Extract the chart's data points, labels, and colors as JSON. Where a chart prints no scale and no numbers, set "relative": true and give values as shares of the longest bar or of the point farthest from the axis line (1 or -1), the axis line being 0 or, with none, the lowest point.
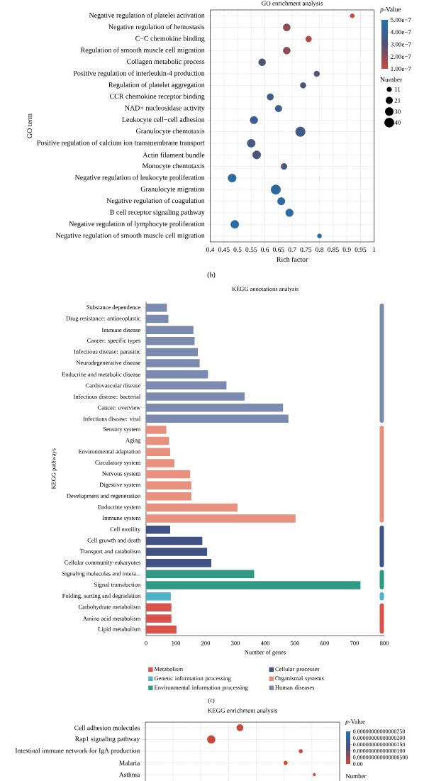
{
  "chart_data": [
    {
      "type": "bubble",
      "orientation": "horizontal",
      "title": "GO enrichment analysis",
      "xlabel": "Rich factor",
      "ylabel": "GO term",
      "clabel": "*p*-Value",
      "legend_title": "Number",
      "annotations": [
        "(b)"
      ],
      "categories": [
        "Negative regulation of platelet activation",
        "Negative regulation of hemostasis",
        "C−C chemokine binding",
        "Regulation of smooth muscle cell migration",
        "Collagen metabolic process",
        "Positive regulation of interleukin-4 production",
        "Regulation of platelet aggregation",
        "CCR chemokine receptor binding",
        "NAD+ nucleosidase activity",
        "Leukocyte cell−cell adhesion",
        "Granulocyte chemotaxis",
        "Positive regulation of calcium ion transmembrane transport",
        "Actin filament bundle",
        "Monocyte chemotaxis",
        "Negative regulation of leukocyte proliferation",
        "Granulocyte migration",
        "Negative regulation of coagulation",
        "B cell receptor signaling pathway",
        "Negative regulation of lymphocyte proliferation",
        "Negative regulation of smooth muscle cell migration"
      ],
      "values": [
        0.92,
        0.68,
        0.76,
        0.68,
        0.59,
        0.79,
        0.74,
        0.62,
        0.65,
        0.56,
        0.73,
        0.55,
        0.57,
        0.67,
        0.48,
        0.64,
        0.66,
        0.69,
        0.49,
        0.8
      ],
      "sizes": [
        8,
        22,
        15,
        22,
        21,
        14,
        14,
        18,
        20,
        25,
        39,
        28,
        29,
        16,
        29,
        39,
        24,
        25,
        28,
        8
      ],
      "size_legend": [
        11,
        21,
        30,
        40
      ],
      "cvalues": [
        1e-07,
        2e-07,
        1.5e-07,
        2e-07,
        3e-07,
        2.8e-07,
        3e-07,
        3.5e-07,
        3.7e-07,
        3.8e-07,
        3.6e-07,
        3.5e-07,
        3.2e-07,
        3.4e-07,
        4.6e-07,
        4.5e-07,
        4.6e-07,
        4.7e-07,
        4.7e-07,
        4.8e-07
      ],
      "clim": [
        1e-07,
        5e-07
      ],
      "cticks": [
        {
          "value": 1e-07,
          "label": "1.00e−7"
        },
        {
          "value": 2e-07,
          "label": "2.00e−7"
        },
        {
          "value": 3e-07,
          "label": "3.00e−7"
        },
        {
          "value": 4e-07,
          "label": "4.00e−7"
        },
        {
          "value": 5e-07,
          "label": "5.00e−7"
        }
      ],
      "xlim": [
        0.4,
        1
      ],
      "xticks": [
        0.4,
        0.45,
        0.5,
        0.55,
        0.6,
        0.65,
        0.7,
        0.75,
        0.8,
        0.85,
        0.9,
        0.95,
        1
      ],
      "grid": true
    },
    {
      "type": "bar",
      "orientation": "horizontal",
      "title": "KEGG annotations analysis",
      "xlabel": "Number of genes",
      "ylabel": "KEGG pathways",
      "annotations": [
        "(c)"
      ],
      "legend": "bottom",
      "categories": [
        "Substance dependence",
        "Drug resistance: antineoplastic",
        "Immune disease",
        "Cancer: specific types",
        "Infectious disease: parasitic",
        "Neurodegenerative disease",
        "Endocrine and metabolic disease",
        "Cardiovascular disease",
        "Infectious disease: bacterial",
        "Cancer: overview",
        "Infectious disease: viral",
        "Sensory system",
        "Aging",
        "Environmental adaptation",
        "Circulatory system",
        "Nervous system",
        "Digestive system",
        "Development and regeneration",
        "Endocrine system",
        "Immune system",
        "Cell motility",
        "Cell growth and death",
        "Transport and catabolism",
        "Cellular community-eukaryotes",
        "Signaling molecules and intera...",
        "Signal transduction",
        "Folding, sorting and degradation",
        "Carbohydrate metabolism",
        "Amino acid metabolism",
        "Lipid metabolism"
      ],
      "series": [
        {
          "name": "Metabolism",
          "color": "#d9534a",
          "values": [
            null,
            null,
            null,
            null,
            null,
            null,
            null,
            null,
            null,
            null,
            null,
            null,
            null,
            null,
            null,
            null,
            null,
            null,
            null,
            null,
            null,
            null,
            null,
            null,
            null,
            null,
            null,
            85,
            85,
            102
          ]
        },
        {
          "name": "Genetic information processing",
          "color": "#4db3c8",
          "values": [
            null,
            null,
            null,
            null,
            null,
            null,
            null,
            null,
            null,
            null,
            null,
            null,
            null,
            null,
            null,
            null,
            null,
            null,
            null,
            null,
            null,
            null,
            null,
            null,
            null,
            null,
            83,
            null,
            null,
            null
          ]
        },
        {
          "name": "Environmental information processing",
          "color": "#2e9a84",
          "values": [
            null,
            null,
            null,
            null,
            null,
            null,
            null,
            null,
            null,
            null,
            null,
            null,
            null,
            null,
            null,
            null,
            null,
            null,
            null,
            null,
            null,
            null,
            null,
            null,
            363,
            720,
            null,
            null,
            null,
            null
          ]
        },
        {
          "name": "Cellular processes",
          "color": "#3f5185",
          "values": [
            null,
            null,
            null,
            null,
            null,
            null,
            null,
            null,
            null,
            null,
            null,
            null,
            null,
            null,
            null,
            null,
            null,
            null,
            null,
            null,
            81,
            189,
            205,
            219,
            null,
            null,
            null,
            null,
            null,
            null
          ]
        },
        {
          "name": "Organismal systems",
          "color": "#e8907e",
          "values": [
            null,
            null,
            null,
            null,
            null,
            null,
            null,
            null,
            null,
            null,
            null,
            68,
            77,
            81,
            95,
            148,
            152,
            152,
            307,
            502,
            null,
            null,
            null,
            null,
            null,
            null,
            null,
            null,
            null,
            null
          ]
        },
        {
          "name": "Human diseases",
          "color": "#7b8bb0",
          "values": [
            70,
            75,
            159,
            163,
            174,
            180,
            208,
            270,
            331,
            460,
            478,
            null,
            null,
            null,
            null,
            null,
            null,
            null,
            null,
            null,
            null,
            null,
            null,
            null,
            null,
            null,
            null,
            null,
            null,
            null
          ]
        }
      ],
      "xlim": [
        0,
        800
      ],
      "xticks": [
        0,
        100,
        200,
        300,
        400,
        500,
        600,
        700,
        800
      ]
    },
    {
      "type": "bubble",
      "orientation": "horizontal",
      "relative": true,
      "title": "KEGG enrichment analysis",
      "clabel": "*p*-Value",
      "legend_title": "Number",
      "categories": [
        "Cell adhesion molecules",
        "Rap1 signaling pathway",
        "Intestinal immune network for IgA production",
        "Malaria",
        "Asthma"
      ],
      "values": [
        0.56,
        0.39,
        0.92,
        0.83,
        1
      ],
      "sizes": [
        0.68,
        1,
        0.23,
        0.23,
        0.12
      ],
      "cvalues": [
        0,
        0,
        0,
        0,
        0
      ],
      "clim": [
        0,
        2.5e-15
      ],
      "cticks": [
        {
          "value": 0,
          "label": "0.00"
        },
        {
          "value": 5e-16,
          "label": "0.000000000000000500"
        },
        {
          "value": 1e-15,
          "label": "0.00000000000000100"
        },
        {
          "value": 1.5e-15,
          "label": "0.00000000000000150"
        },
        {
          "value": 2e-15,
          "label": "0.00000000000000200"
        },
        {
          "value": 2.5e-15,
          "label": "0.00000000000000250"
        }
      ],
      "grid": true
    }
  ]
}
